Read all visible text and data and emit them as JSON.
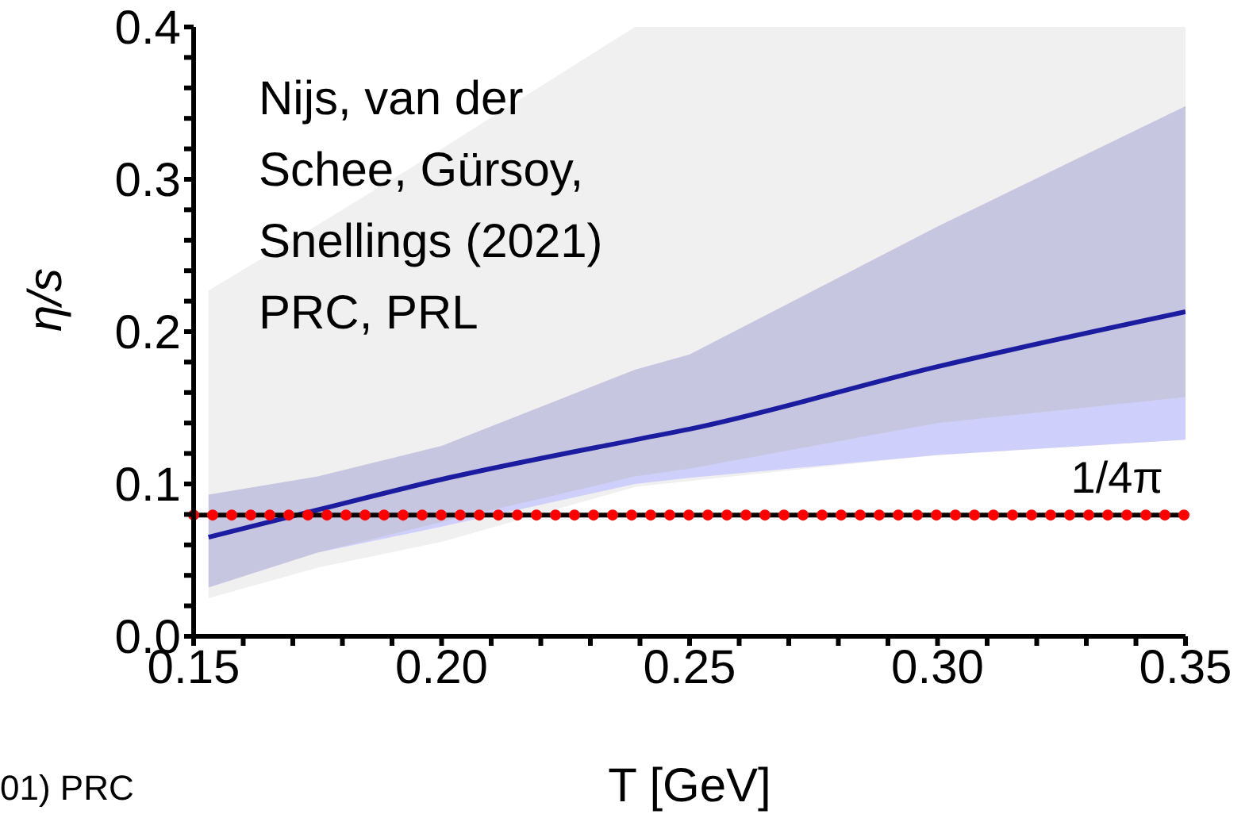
{
  "chart_data": {
    "type": "line",
    "xlabel": "T [GeV]",
    "ylabel": "η/s",
    "xlim": [
      0.15,
      0.35
    ],
    "ylim": [
      0,
      0.4
    ],
    "xticks": [
      0.15,
      {
        "value": 0.16,
        "label": null
      },
      {
        "value": 0.17,
        "label": null
      },
      {
        "value": 0.18,
        "label": null
      },
      {
        "value": 0.19,
        "label": null
      },
      {
        "value": 0.2,
        "label": "0.20"
      },
      {
        "value": 0.21,
        "label": null
      },
      {
        "value": 0.22,
        "label": null
      },
      {
        "value": 0.23,
        "label": null
      },
      {
        "value": 0.24,
        "label": null
      },
      0.25,
      {
        "value": 0.26,
        "label": null
      },
      {
        "value": 0.27,
        "label": null
      },
      {
        "value": 0.28,
        "label": null
      },
      {
        "value": 0.29,
        "label": null
      },
      {
        "value": 0.3,
        "label": "0.30"
      },
      {
        "value": 0.31,
        "label": null
      },
      {
        "value": 0.32,
        "label": null
      },
      {
        "value": 0.33,
        "label": null
      },
      {
        "value": 0.34,
        "label": null
      },
      0.35
    ],
    "yticks": [
      {
        "value": 0,
        "label": "0.0"
      },
      {
        "value": 0.02,
        "label": null
      },
      {
        "value": 0.04,
        "label": null
      },
      {
        "value": 0.06,
        "label": null
      },
      {
        "value": 0.08,
        "label": null
      },
      0.1,
      {
        "value": 0.12,
        "label": null
      },
      {
        "value": 0.14,
        "label": null
      },
      {
        "value": 0.16,
        "label": null
      },
      {
        "value": 0.18,
        "label": null
      },
      0.2,
      {
        "value": 0.22,
        "label": null
      },
      {
        "value": 0.24,
        "label": null
      },
      {
        "value": 0.26,
        "label": null
      },
      {
        "value": 0.28,
        "label": null
      },
      0.3,
      {
        "value": 0.32,
        "label": null
      },
      {
        "value": 0.34,
        "label": null
      },
      {
        "value": 0.36,
        "label": null
      },
      {
        "value": 0.38,
        "label": null
      },
      0.4
    ],
    "series": [
      {
        "type": "area",
        "color": "#f0f0f0",
        "x": [
          0.153,
          0.175,
          0.2,
          0.239,
          0.25,
          0.3,
          0.35
        ],
        "values": [
          null,
          null,
          null,
          null,
          null,
          null,
          null
        ],
        "lower": [
          0.025,
          0.045,
          0.062,
          0.098,
          0.102,
          0.119,
          0.129
        ],
        "upper": [
          0.227,
          0.27,
          0.32,
          0.4,
          0.4,
          0.4,
          0.4
        ]
      },
      {
        "type": "area",
        "color": "#cfcffc",
        "x": [
          0.153,
          0.175,
          0.2,
          0.239,
          0.25,
          0.3,
          0.35
        ],
        "values": [
          null,
          null,
          null,
          null,
          null,
          null,
          null
        ],
        "lower": [
          0.032,
          0.055,
          0.072,
          0.1,
          0.104,
          0.119,
          0.129
        ],
        "upper": [
          0.032,
          0.055,
          0.075,
          0.105,
          0.11,
          0.14,
          0.157
        ]
      },
      {
        "color": "#1c1ca0",
        "x": [
          0.153,
          0.175,
          0.2,
          0.239,
          0.25,
          0.3,
          0.35
        ],
        "values": [
          0.065,
          0.083,
          0.103,
          0.129,
          0.136,
          0.177,
          0.213
        ],
        "lower": [
          0.032,
          0.055,
          0.075,
          0.105,
          0.11,
          0.14,
          0.157
        ],
        "upper": [
          0.093,
          0.105,
          0.125,
          0.175,
          0.185,
          0.269,
          0.348
        ]
      }
    ],
    "ref_lines": [
      {
        "axis": "y",
        "value": 0.0796,
        "label": "1/4π",
        "color": "#000000",
        "line_style": "solid"
      },
      {
        "axis": "y",
        "value": 0.0796,
        "color": "#ff0000",
        "line_style": "dotted"
      }
    ],
    "annotations": [
      "Nijs, van der Schee, Gürsoy, Snellings (2021) PRC, PRL",
      "01) PRC"
    ]
  }
}
